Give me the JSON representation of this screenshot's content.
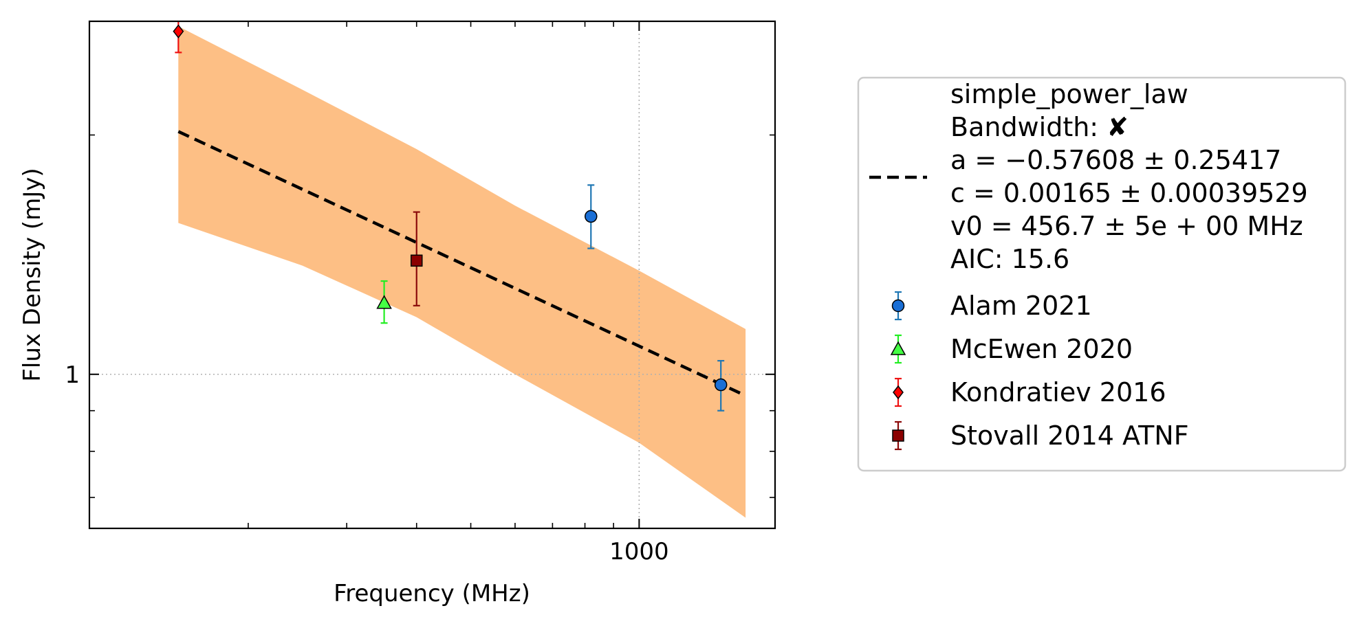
{
  "chart_data": {
    "type": "scatter",
    "xlabel": "Frequency (MHz)",
    "ylabel": "Flux Density (mJy)",
    "xscale": "log",
    "yscale": "log",
    "xlim": [
      104,
      1750
    ],
    "ylim": [
      0.64,
      2.78
    ],
    "x_tick_labels": [
      {
        "value": 1000,
        "label": "1000"
      }
    ],
    "y_tick_labels": [
      {
        "value": 1,
        "label": "1"
      }
    ],
    "x_minor_ticks": [
      200,
      300,
      400,
      500,
      600,
      700,
      800,
      900
    ],
    "y_minor_ticks": [
      0.7,
      0.8,
      0.9,
      2
    ],
    "grid": {
      "enabled": true,
      "style": "dotted",
      "at_x": [
        1000
      ],
      "at_y": [
        1
      ]
    },
    "legend_position": "right, outside plot",
    "fit": {
      "name": "simple_power_law",
      "legend_lines": [
        "simple_power_law",
        "Bandwidth: ✘",
        "a = −0.57608 ± 0.25417",
        "c = 0.00165 ± 0.00039529",
        "v0 = 456.7 ± 5e + 00 MHz",
        "AIC: 15.6"
      ],
      "a": -0.57608,
      "a_err": 0.25417,
      "c": 0.00165,
      "c_err": 0.00039529,
      "v0_mhz": 456.7,
      "line_color": "#000000",
      "line_style": "dashed",
      "band_color": "#fdbf85",
      "line": [
        {
          "x": 150,
          "y": 2.02
        },
        {
          "x": 1550,
          "y": 0.94
        }
      ],
      "band": [
        {
          "x": 150,
          "lower": 1.55,
          "upper": 2.74
        },
        {
          "x": 250,
          "lower": 1.37,
          "upper": 2.28
        },
        {
          "x": 400,
          "lower": 1.18,
          "upper": 1.92
        },
        {
          "x": 600,
          "lower": 1.0,
          "upper": 1.63
        },
        {
          "x": 1000,
          "lower": 0.82,
          "upper": 1.35
        },
        {
          "x": 1550,
          "lower": 0.66,
          "upper": 1.14
        }
      ]
    },
    "series": [
      {
        "name": "Alam 2021",
        "marker": "circle",
        "color": "#1f77b4",
        "fill": "#1a6fd6",
        "points": [
          {
            "x": 820,
            "y": 1.58,
            "yerr_low": 0.14,
            "yerr_high": 0.15
          },
          {
            "x": 1400,
            "y": 0.97,
            "yerr_low": 0.07,
            "yerr_high": 0.07
          }
        ]
      },
      {
        "name": "McEwen 2020",
        "marker": "triangle",
        "color": "#22ee22",
        "fill": "#44ff44",
        "points": [
          {
            "x": 350,
            "y": 1.23,
            "yerr_low": 0.07,
            "yerr_high": 0.08
          }
        ]
      },
      {
        "name": "Kondratiev 2016",
        "marker": "diamond",
        "color": "#ee1111",
        "fill": "#ff0000",
        "points": [
          {
            "x": 150,
            "y": 2.7,
            "yerr_low": 0.16,
            "yerr_high": 0.16
          }
        ]
      },
      {
        "name": "Stovall 2014 ATNF",
        "marker": "square",
        "color": "#8b0a0a",
        "fill": "#8b0000",
        "points": [
          {
            "x": 400,
            "y": 1.39,
            "yerr_low": 0.17,
            "yerr_high": 0.21
          }
        ]
      }
    ]
  }
}
